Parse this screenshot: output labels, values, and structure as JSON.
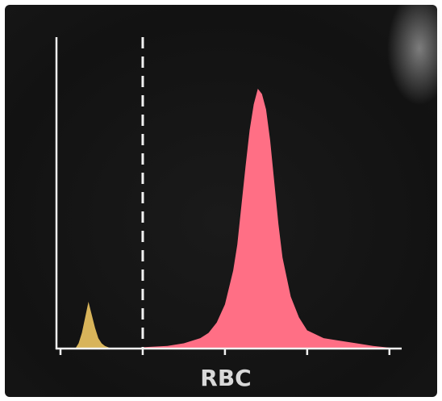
{
  "chart_data": {
    "type": "area",
    "title": "",
    "xlabel": "RBC",
    "ylabel": "",
    "xlim": [
      0,
      410
    ],
    "ylim": [
      0,
      100
    ],
    "grid": false,
    "x_ticks": [
      0,
      100,
      200,
      300,
      400
    ],
    "threshold": {
      "x": 100,
      "style": "dashed",
      "color": "#f2f2f2"
    },
    "series": [
      {
        "color": "#d8b45a",
        "x": [
          18,
          22,
          26,
          30,
          34,
          38,
          42,
          46,
          50,
          54,
          58,
          62
        ],
        "y": [
          0,
          2,
          6,
          12,
          18,
          13,
          8,
          4,
          2,
          1,
          0.5,
          0
        ]
      },
      {
        "color": "#ff6f85",
        "x": [
          100,
          130,
          150,
          170,
          180,
          190,
          200,
          210,
          215,
          220,
          225,
          230,
          235,
          240,
          245,
          250,
          255,
          260,
          265,
          270,
          280,
          290,
          300,
          320,
          340,
          360,
          380,
          410
        ],
        "y": [
          0.5,
          1,
          2,
          4,
          6,
          10,
          17,
          30,
          40,
          55,
          70,
          84,
          94,
          100,
          98,
          92,
          80,
          64,
          48,
          35,
          20,
          12,
          7,
          4,
          3,
          2,
          1,
          0
        ]
      }
    ],
    "colors": {
      "background": "#131313",
      "axis": "#f2f2f2",
      "label": "#d9d9d9"
    }
  }
}
